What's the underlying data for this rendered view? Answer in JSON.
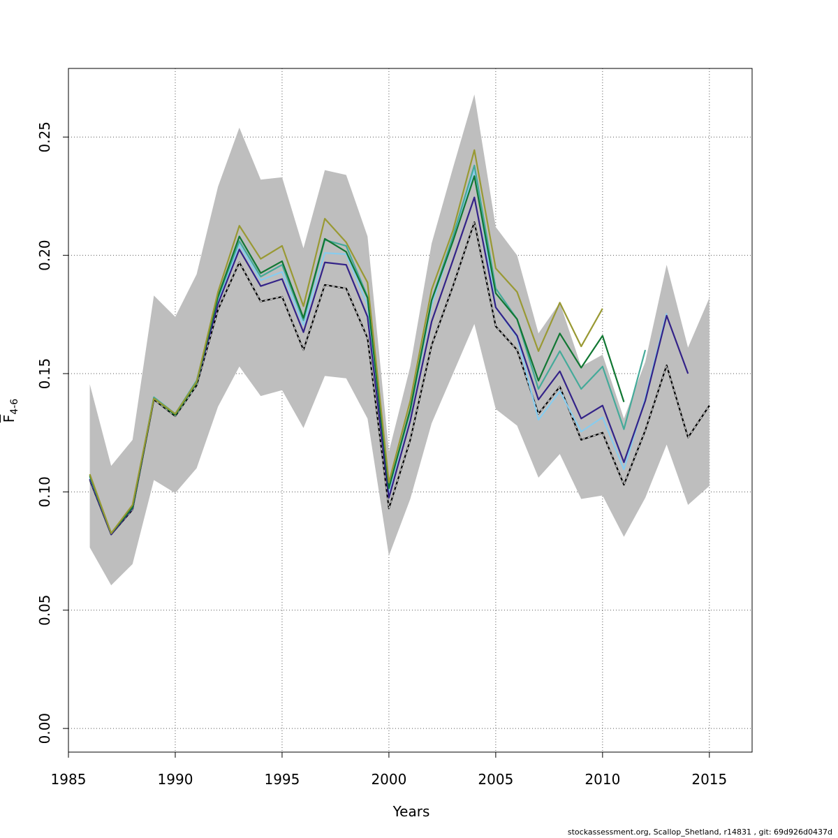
{
  "chart_data": {
    "type": "line",
    "title": "",
    "xlabel": "Years",
    "ylabel": {
      "main": "F",
      "subscript": "4-6"
    },
    "xlim": [
      1985,
      2017
    ],
    "ylim": [
      -0.01,
      0.279
    ],
    "xticks": [
      "1985",
      "1990",
      "1995",
      "2000",
      "2005",
      "2010",
      "2015"
    ],
    "yticks": [
      "0.00",
      "0.05",
      "0.10",
      "0.15",
      "0.20",
      "0.25"
    ],
    "grid": true,
    "confidence_band": {
      "x": [
        1986,
        1987,
        1988,
        1989,
        1990,
        1991,
        1992,
        1993,
        1994,
        1995,
        1996,
        1997,
        1998,
        1999,
        2000,
        2001,
        2002,
        2003,
        2004,
        2005,
        2006,
        2007,
        2008,
        2009,
        2010,
        2011,
        2012,
        2013,
        2014,
        2015
      ],
      "upper": [
        0.1455,
        0.111,
        0.122,
        0.183,
        0.174,
        0.192,
        0.229,
        0.254,
        0.232,
        0.233,
        0.203,
        0.236,
        0.234,
        0.208,
        0.117,
        0.153,
        0.205,
        0.237,
        0.268,
        0.212,
        0.2,
        0.167,
        0.18,
        0.153,
        0.158,
        0.131,
        0.155,
        0.196,
        0.161,
        0.182
      ],
      "lower": [
        0.0765,
        0.0605,
        0.0695,
        0.105,
        0.0995,
        0.11,
        0.136,
        0.153,
        0.1405,
        0.143,
        0.127,
        0.149,
        0.148,
        0.131,
        0.073,
        0.097,
        0.129,
        0.15,
        0.171,
        0.135,
        0.128,
        0.106,
        0.116,
        0.097,
        0.0985,
        0.081,
        0.0975,
        0.12,
        0.0945,
        0.1025
      ],
      "color": "#bebebe"
    },
    "series": [
      {
        "color": "#000000",
        "width": 2.2,
        "x": [
          1986,
          1987,
          1988,
          1989,
          1990,
          1991,
          1992,
          1993,
          1994,
          1995,
          1996,
          1997,
          1998,
          1999,
          2000,
          2001,
          2002,
          2003,
          2004,
          2005,
          2006,
          2007,
          2008,
          2009,
          2010,
          2011,
          2012,
          2013,
          2014,
          2015
        ],
        "y": [
          0.105,
          0.082,
          0.0925,
          0.139,
          0.132,
          0.145,
          0.177,
          0.197,
          0.1805,
          0.1825,
          0.16,
          0.1875,
          0.186,
          0.165,
          0.093,
          0.122,
          0.162,
          0.187,
          0.214,
          0.17,
          0.16,
          0.133,
          0.1445,
          0.122,
          0.125,
          0.103,
          0.126,
          0.1535,
          0.123,
          0.1365
        ]
      },
      {
        "color": "#d8d8d8",
        "width": 1.4,
        "dash": "4,4",
        "x": [
          1986,
          1987,
          1988,
          1989,
          1990,
          1991,
          1992,
          1993,
          1994,
          1995,
          1996,
          1997,
          1998,
          1999,
          2000,
          2001,
          2002,
          2003,
          2004,
          2005,
          2006,
          2007,
          2008,
          2009,
          2010,
          2011,
          2012,
          2013,
          2014,
          2015
        ],
        "y": [
          0.105,
          0.082,
          0.0925,
          0.139,
          0.132,
          0.145,
          0.177,
          0.197,
          0.1805,
          0.1825,
          0.16,
          0.1875,
          0.186,
          0.165,
          0.093,
          0.122,
          0.162,
          0.187,
          0.214,
          0.17,
          0.16,
          0.133,
          0.1445,
          0.122,
          0.125,
          0.103,
          0.126,
          0.1535,
          0.123,
          0.1365
        ]
      },
      {
        "color": "#88ccee",
        "width": 2.2,
        "x": [
          1986,
          1987,
          1988,
          1989,
          1990,
          1991,
          1992,
          1993,
          1994,
          1995,
          1996,
          1997,
          1998,
          1999,
          2000,
          2001,
          2002,
          2003,
          2004,
          2005,
          2006,
          2007,
          2008,
          2009,
          2010,
          2011,
          2012,
          2013
        ],
        "y": [
          0.1055,
          0.0825,
          0.093,
          0.14,
          0.133,
          0.1465,
          0.181,
          0.2045,
          0.1895,
          0.193,
          0.1705,
          0.201,
          0.2005,
          0.179,
          0.1,
          0.134,
          0.179,
          0.206,
          0.236,
          0.178,
          0.1655,
          0.1305,
          0.1425,
          0.1255,
          0.1315,
          0.1095,
          0.1395,
          0.1755
        ]
      },
      {
        "color": "#332288",
        "width": 2.2,
        "x": [
          1986,
          1987,
          1988,
          1989,
          1990,
          1991,
          1992,
          1993,
          1994,
          1995,
          1996,
          1997,
          1998,
          1999,
          2000,
          2001,
          2002,
          2003,
          2004,
          2005,
          2006,
          2007,
          2008,
          2009,
          2010,
          2011,
          2012,
          2013,
          2014
        ],
        "y": [
          0.1055,
          0.082,
          0.093,
          0.1395,
          0.1325,
          0.146,
          0.1795,
          0.2025,
          0.187,
          0.19,
          0.1675,
          0.197,
          0.196,
          0.174,
          0.0975,
          0.13,
          0.172,
          0.198,
          0.2245,
          0.178,
          0.166,
          0.139,
          0.151,
          0.131,
          0.1365,
          0.1125,
          0.1385,
          0.1745,
          0.15
        ]
      },
      {
        "color": "#44aa99",
        "width": 2.2,
        "x": [
          1986,
          1987,
          1988,
          1989,
          1990,
          1991,
          1992,
          1993,
          1994,
          1995,
          1996,
          1997,
          1998,
          1999,
          2000,
          2001,
          2002,
          2003,
          2004,
          2005,
          2006,
          2007,
          2008,
          2009,
          2010,
          2011,
          2012
        ],
        "y": [
          0.1065,
          0.0825,
          0.0935,
          0.14,
          0.133,
          0.147,
          0.182,
          0.206,
          0.191,
          0.196,
          0.1725,
          0.2065,
          0.204,
          0.1825,
          0.102,
          0.134,
          0.181,
          0.208,
          0.238,
          0.186,
          0.173,
          0.1435,
          0.1595,
          0.1435,
          0.153,
          0.1265,
          0.16
        ]
      },
      {
        "color": "#117733",
        "width": 2.2,
        "x": [
          1986,
          1987,
          1988,
          1989,
          1990,
          1991,
          1992,
          1993,
          1994,
          1995,
          1996,
          1997,
          1998,
          1999,
          2000,
          2001,
          2002,
          2003,
          2004,
          2005,
          2006,
          2007,
          2008,
          2009,
          2010,
          2011
        ],
        "y": [
          0.107,
          0.0825,
          0.0935,
          0.1395,
          0.1325,
          0.146,
          0.1825,
          0.208,
          0.1925,
          0.1975,
          0.1735,
          0.207,
          0.2015,
          0.182,
          0.1015,
          0.135,
          0.181,
          0.206,
          0.2335,
          0.184,
          0.173,
          0.147,
          0.167,
          0.1525,
          0.166,
          0.138
        ]
      },
      {
        "color": "#999933",
        "width": 2.2,
        "x": [
          1986,
          1987,
          1988,
          1989,
          1990,
          1991,
          1992,
          1993,
          1994,
          1995,
          1996,
          1997,
          1998,
          1999,
          2000,
          2001,
          2002,
          2003,
          2004,
          2005,
          2006,
          2007,
          2008,
          2009,
          2010
        ],
        "y": [
          0.1075,
          0.0825,
          0.0945,
          0.1395,
          0.133,
          0.1465,
          0.1845,
          0.2125,
          0.1985,
          0.204,
          0.1785,
          0.2155,
          0.2055,
          0.1885,
          0.104,
          0.1385,
          0.1855,
          0.2105,
          0.2445,
          0.1945,
          0.1845,
          0.1595,
          0.18,
          0.1615,
          0.1775
        ]
      }
    ]
  },
  "footer": "stockassessment.org, Scallop_Shetland, r14831 , git: 69d926d0437d"
}
